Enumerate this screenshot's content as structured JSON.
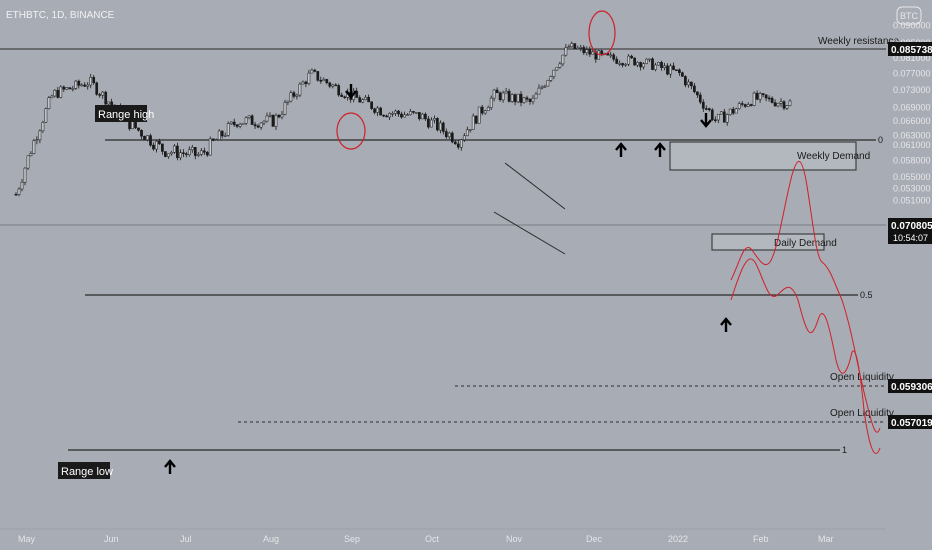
{
  "header": {
    "symbol": "ETHBTC, 1D, BINANCE",
    "currency_badge": "BTC"
  },
  "annotations": {
    "range_high": "Range high",
    "range_low": "Range low",
    "weekly_resistance": "Weekly resistance",
    "weekly_demand": "Weekly Demand",
    "daily_demand": "Daily Demand",
    "open_liquidity_1": "Open Liquidity",
    "open_liquidity_2": "Open Liquidity",
    "fib_0": "0",
    "fib_05": "0.5",
    "fib_1": "1"
  },
  "price_labels": {
    "weekly_resistance_price": "0.085738",
    "current_price": "0.070805",
    "countdown": "10:54:07",
    "open_liquidity_1_price": "0.059306",
    "open_liquidity_2_price": "0.057019"
  },
  "colors": {
    "background": "#a8acb4",
    "candle": "#1a1a1a",
    "projection": "#d0202a",
    "circle": "#d0202a",
    "label_bg": "#111111",
    "axis_text": "#e6e6ea"
  },
  "chart_data": {
    "type": "candlestick",
    "y_scale": "log",
    "ylim": [
      0.0508,
      0.0905
    ],
    "yticks": [
      "0.090000",
      "0.085000",
      "0.081000",
      "0.077000",
      "0.073000",
      "0.069000",
      "0.066000",
      "0.063000",
      "0.061000",
      "0.058000",
      "0.055000",
      "0.053000",
      "0.051000"
    ],
    "ytick_values": [
      0.09,
      0.085,
      0.081,
      0.077,
      0.073,
      0.069,
      0.066,
      0.063,
      0.061,
      0.058,
      0.055,
      0.053,
      0.051
    ],
    "xticks": [
      "May",
      "Jun",
      "Jul",
      "Aug",
      "Sep",
      "Oct",
      "Nov",
      "Dec",
      "2022",
      "Feb",
      "Mar"
    ],
    "series": [
      {
        "name": "ETHBTC daily closes",
        "x": [
          "May",
          "mid-May",
          "end-May",
          "mid-Jun",
          "end-Jun",
          "mid-Jul",
          "end-Jul",
          "mid-Aug",
          "early-Sep",
          "mid-Sep",
          "end-Sep",
          "mid-Oct",
          "end-Oct",
          "mid-Nov",
          "end-Nov",
          "early-Dec",
          "mid-Dec",
          "end-Dec",
          "mid-Jan",
          "end-Jan",
          "early-Feb",
          "mid-Feb"
        ],
        "values": [
          0.052,
          0.072,
          0.075,
          0.066,
          0.06,
          0.059,
          0.066,
          0.066,
          0.077,
          0.072,
          0.068,
          0.067,
          0.062,
          0.072,
          0.07,
          0.084,
          0.081,
          0.08,
          0.077,
          0.066,
          0.071,
          0.07
        ]
      }
    ],
    "levels": {
      "weekly_resistance": 0.085738,
      "range_high_fib_0": 0.0775,
      "fib_05": 0.0662,
      "range_low_fib_1": 0.0559,
      "open_liquidity_1": 0.059306,
      "open_liquidity_2": 0.057019,
      "current": 0.070805
    },
    "zones": [
      {
        "name": "Weekly Demand",
        "low": 0.0735,
        "high": 0.0768
      },
      {
        "name": "Daily Demand",
        "low": 0.0693,
        "high": 0.0703
      }
    ]
  }
}
